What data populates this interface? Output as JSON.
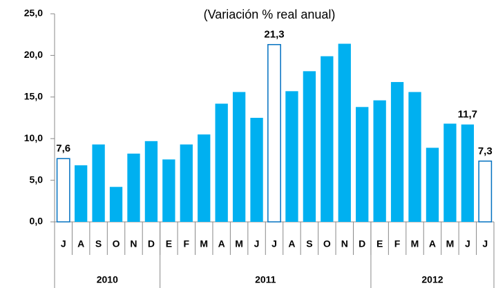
{
  "chart_data": {
    "type": "bar",
    "subtitle": "(Variación % real anual)",
    "categories": [
      "J",
      "A",
      "S",
      "O",
      "N",
      "D",
      "E",
      "F",
      "M",
      "A",
      "M",
      "J",
      "J",
      "A",
      "S",
      "O",
      "N",
      "D",
      "E",
      "F",
      "M",
      "A",
      "M",
      "J",
      "J"
    ],
    "values": [
      7.6,
      6.8,
      9.3,
      4.2,
      8.2,
      9.7,
      7.5,
      9.3,
      10.5,
      14.2,
      15.6,
      12.5,
      21.3,
      15.7,
      18.1,
      19.9,
      21.4,
      13.8,
      14.6,
      16.8,
      15.6,
      8.9,
      11.8,
      11.7,
      7.3
    ],
    "value_labels": [
      "7,6",
      null,
      null,
      null,
      null,
      null,
      null,
      null,
      null,
      null,
      null,
      null,
      "21,3",
      null,
      null,
      null,
      null,
      null,
      null,
      null,
      null,
      null,
      null,
      "11,7",
      "7,3"
    ],
    "colors": [
      "#ffffff",
      "#00b0f0",
      "#00b0f0",
      "#00b0f0",
      "#00b0f0",
      "#00b0f0",
      "#00b0f0",
      "#00b0f0",
      "#00b0f0",
      "#00b0f0",
      "#00b0f0",
      "#00b0f0",
      "#ffffff",
      "#00b0f0",
      "#00b0f0",
      "#00b0f0",
      "#00b0f0",
      "#00b0f0",
      "#00b0f0",
      "#00b0f0",
      "#00b0f0",
      "#00b0f0",
      "#00b0f0",
      "#00b0f0",
      "#ffffff"
    ],
    "outline_color": "#0070c0",
    "groups": [
      {
        "label": "2010",
        "size": 6
      },
      {
        "label": "2011",
        "size": 12
      },
      {
        "label": "2012",
        "size": 7
      }
    ],
    "ylim": [
      0,
      25
    ],
    "yticks": [
      {
        "value": 0,
        "label": "0,0"
      },
      {
        "value": 5,
        "label": "5,0"
      },
      {
        "value": 10,
        "label": "10,0"
      },
      {
        "value": 15,
        "label": "15,0"
      },
      {
        "value": 20,
        "label": "20,0"
      },
      {
        "value": 25,
        "label": "25,0"
      }
    ]
  }
}
